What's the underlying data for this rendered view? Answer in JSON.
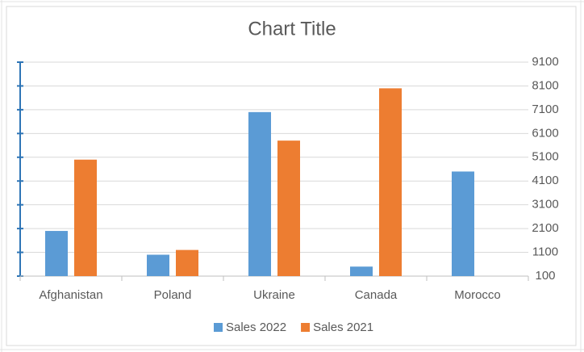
{
  "chart_data": {
    "type": "bar",
    "title": "Chart Title",
    "categories": [
      "Afghanistan",
      "Poland",
      "Ukraine",
      "Canada",
      "Morocco"
    ],
    "series": [
      {
        "name": "Sales 2022",
        "color": "#5b9bd5",
        "values": [
          2000,
          1000,
          7000,
          500,
          4500
        ]
      },
      {
        "name": "Sales 2021",
        "color": "#ed7d31",
        "values": [
          5000,
          1200,
          5800,
          8000,
          null
        ]
      }
    ],
    "ylim": [
      100,
      9100
    ],
    "yticks": [
      100,
      1100,
      2100,
      3100,
      4100,
      5100,
      6100,
      7100,
      8100,
      9100
    ],
    "grid": true,
    "legend": "bottom"
  }
}
